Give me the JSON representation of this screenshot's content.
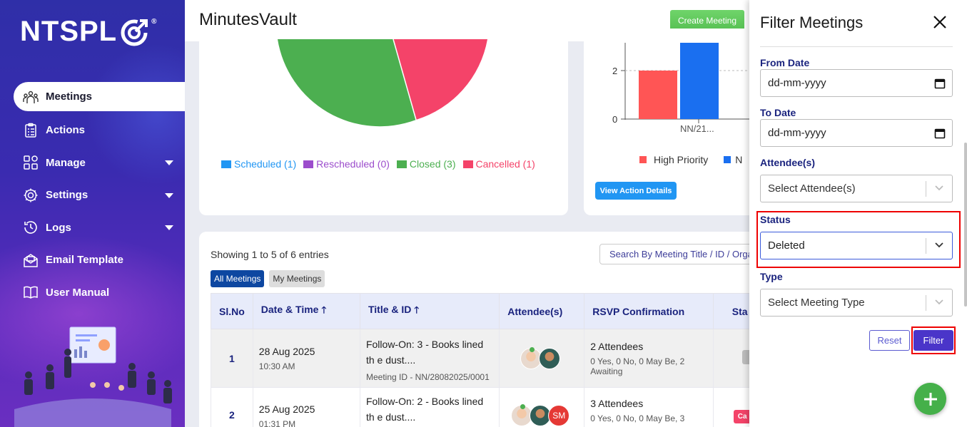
{
  "brand": {
    "logo_text": "NTSPL",
    "registered": "®"
  },
  "sidebar": {
    "items": [
      {
        "label": "Meetings",
        "icon": "meetings-icon",
        "active": true
      },
      {
        "label": "Actions",
        "icon": "clipboard-icon"
      },
      {
        "label": "Manage",
        "icon": "grid-icon",
        "has_submenu": true
      },
      {
        "label": "Settings",
        "icon": "gear-icon",
        "has_submenu": true
      },
      {
        "label": "Logs",
        "icon": "history-icon",
        "has_submenu": true
      },
      {
        "label": "Email Template",
        "icon": "envelope-icon"
      },
      {
        "label": "User Manual",
        "icon": "book-icon"
      }
    ]
  },
  "header": {
    "title": "MinutesVault",
    "create_label": "Create Meeting"
  },
  "pie_legend": [
    {
      "label": "Scheduled (1)",
      "color": "#2196f3"
    },
    {
      "label": "Rescheduled (0)",
      "color": "#9c4dcc"
    },
    {
      "label": "Closed (3)",
      "color": "#4caf50"
    },
    {
      "label": "Cancelled (1)",
      "color": "#f44369"
    }
  ],
  "bar_chart": {
    "y_ticks": [
      "2",
      "0"
    ],
    "x_label": "NN/21...",
    "legend_high": "High Priority",
    "legend_normal": "N",
    "high_color": "#ff5555",
    "normal_color": "#1a6ff0",
    "view_label": "View Action Details"
  },
  "table_card": {
    "showing": "Showing 1 to 5 of 6 entries",
    "search_placeholder": "Search By Meeting Title / ID / Orga",
    "tab_all": "All Meetings",
    "tab_mine": "My Meetings",
    "columns": {
      "sl": "Sl.No",
      "date": "Date & Time",
      "title": "Title & ID",
      "attendees": "Attendee(s)",
      "rsvp": "RSVP Confirmation",
      "status": "Sta"
    },
    "rows": [
      {
        "sl": "1",
        "date": "28 Aug 2025",
        "time": "10:30 AM",
        "title": "Follow-On: 3 - Books lined th e dust....",
        "meeting_id": "Meeting ID - NN/28082025/0001",
        "rsvp": "2 Attendees",
        "rsvp_detail": "0 Yes, 0 No, 0 May Be, 2 Awaiting"
      },
      {
        "sl": "2",
        "date": "25 Aug 2025",
        "time": "01:31 PM",
        "title": "Follow-On: 2 - Books lined th e dust....",
        "initials": "SM",
        "rsvp": "3 Attendees",
        "rsvp_detail": "0 Yes, 0 No, 0 May Be, 3",
        "status_text": "Ca"
      }
    ]
  },
  "filter_panel": {
    "title": "Filter Meetings",
    "from_label": "From Date",
    "from_value": "dd-mm-yyyy",
    "to_label": "To Date",
    "to_value": "dd-mm-yyyy",
    "attendee_label": "Attendee(s)",
    "attendee_placeholder": "Select Attendee(s)",
    "status_label": "Status",
    "status_value": "Deleted",
    "type_label": "Type",
    "type_placeholder": "Select Meeting Type",
    "reset_label": "Reset",
    "filter_label": "Filter"
  }
}
